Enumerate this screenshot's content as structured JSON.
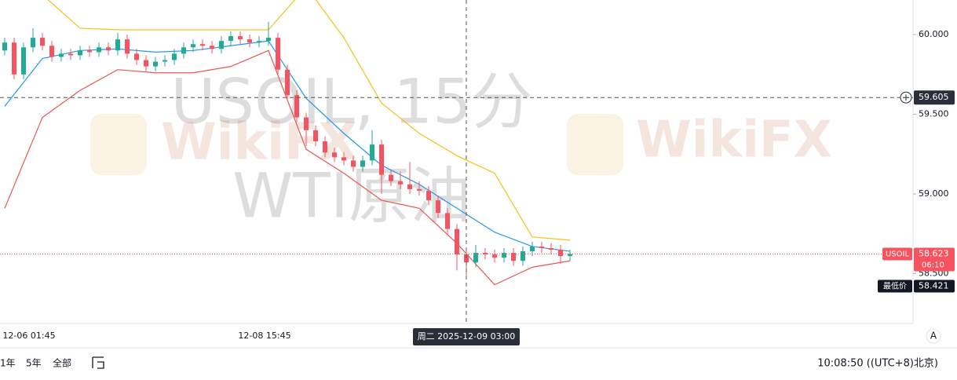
{
  "chart_data": {
    "type": "candlestick",
    "title": "USOIL, 15分",
    "subtitle": "WTI原油",
    "watermark": "WikiFX",
    "categories": [
      null,
      null,
      null,
      "12-06 01:45",
      null,
      null,
      null,
      null,
      null,
      null,
      null,
      null,
      null,
      null,
      null,
      null,
      null,
      null,
      null,
      null,
      null,
      null,
      null,
      null,
      null,
      null,
      null,
      null,
      "12-08 15:45",
      null,
      null,
      null,
      null,
      null,
      null,
      null,
      null,
      null,
      null,
      null,
      null,
      null,
      null,
      null,
      null,
      null,
      null,
      null,
      null,
      null,
      null,
      null,
      null,
      null,
      null,
      null,
      null,
      null,
      null,
      null,
      null
    ],
    "open": [
      59.9,
      59.95,
      59.75,
      59.92,
      59.98,
      59.93,
      59.86,
      59.88,
      59.87,
      59.9,
      59.89,
      59.92,
      59.9,
      59.97,
      59.88,
      59.84,
      59.8,
      59.83,
      59.84,
      59.88,
      59.92,
      59.94,
      59.93,
      59.91,
      59.96,
      59.99,
      59.97,
      59.95,
      59.96,
      59.98,
      59.78,
      59.62,
      59.48,
      59.4,
      59.33,
      59.26,
      59.23,
      59.21,
      59.17,
      59.21,
      59.31,
      59.12,
      59.08,
      59.06,
      59.03,
      59.02,
      58.96,
      58.88,
      58.78,
      58.62,
      58.57,
      58.63,
      58.62,
      58.6,
      58.63,
      58.58,
      58.64,
      58.67,
      58.66,
      58.65,
      58.61
    ],
    "high": [
      59.98,
      59.98,
      59.95,
      60.04,
      60.01,
      59.96,
      59.91,
      59.91,
      59.93,
      59.93,
      59.95,
      59.95,
      60.01,
      60.0,
      59.91,
      59.87,
      59.86,
      59.87,
      59.91,
      59.95,
      59.97,
      59.97,
      59.96,
      59.99,
      60.02,
      60.02,
      60.0,
      59.99,
      60.08,
      60.01,
      59.81,
      59.65,
      59.51,
      59.43,
      59.36,
      59.29,
      59.26,
      59.24,
      59.24,
      59.4,
      59.34,
      59.15,
      59.14,
      59.2,
      59.08,
      59.05,
      58.99,
      58.91,
      58.81,
      58.65,
      58.68,
      58.66,
      58.65,
      58.66,
      58.66,
      58.67,
      58.7,
      58.7,
      58.69,
      58.68,
      58.65
    ],
    "low": [
      59.87,
      59.72,
      59.72,
      59.89,
      59.9,
      59.83,
      59.83,
      59.84,
      59.84,
      59.86,
      59.86,
      59.87,
      59.87,
      59.85,
      59.81,
      59.77,
      59.77,
      59.8,
      59.81,
      59.85,
      59.89,
      59.9,
      59.88,
      59.88,
      59.93,
      59.94,
      59.92,
      59.92,
      59.93,
      59.75,
      59.59,
      59.45,
      59.3,
      59.3,
      59.23,
      59.2,
      59.18,
      59.14,
      59.14,
      59.18,
      59.0,
      59.05,
      59.03,
      59.0,
      58.99,
      58.93,
      58.85,
      58.75,
      58.52,
      58.49,
      58.54,
      58.59,
      58.57,
      58.57,
      58.55,
      58.55,
      58.61,
      58.63,
      58.62,
      58.56,
      58.58
    ],
    "close": [
      59.95,
      59.75,
      59.92,
      59.98,
      59.93,
      59.86,
      59.88,
      59.87,
      59.9,
      59.89,
      59.92,
      59.9,
      59.97,
      59.88,
      59.84,
      59.8,
      59.83,
      59.84,
      59.88,
      59.92,
      59.94,
      59.93,
      59.91,
      59.96,
      59.99,
      59.97,
      59.95,
      59.96,
      59.98,
      59.78,
      59.62,
      59.48,
      59.4,
      59.33,
      59.26,
      59.23,
      59.21,
      59.17,
      59.21,
      59.31,
      59.12,
      59.08,
      59.06,
      59.03,
      59.02,
      58.96,
      58.88,
      58.78,
      58.62,
      58.57,
      58.63,
      58.62,
      58.6,
      58.63,
      58.58,
      58.64,
      58.67,
      58.66,
      58.65,
      58.61,
      58.623
    ],
    "up_color": "#22ab94",
    "down_color": "#f7525f",
    "bands": [
      {
        "color": "#f5c118",
        "x": [
          0,
          4,
          8,
          12,
          16,
          20,
          24,
          28,
          32,
          36,
          40,
          44,
          48,
          52,
          56,
          60
        ],
        "values": [
          60.25,
          60.25,
          60.04,
          60.03,
          60.03,
          60.03,
          60.03,
          60.03,
          60.3,
          59.98,
          59.57,
          59.38,
          59.24,
          59.13,
          58.73,
          58.71
        ]
      },
      {
        "color": "#2196f3",
        "x": [
          0,
          4,
          8,
          12,
          16,
          20,
          24,
          28,
          32,
          36,
          40,
          44,
          48,
          52,
          56,
          60
        ],
        "values": [
          59.55,
          59.85,
          59.9,
          59.91,
          59.89,
          59.9,
          59.93,
          59.96,
          59.6,
          59.38,
          59.18,
          59.06,
          58.91,
          58.76,
          58.67,
          58.64
        ]
      },
      {
        "color": "#e8574f",
        "x": [
          0,
          4,
          8,
          12,
          16,
          20,
          24,
          28,
          32,
          36,
          40,
          44,
          48,
          52,
          56,
          60
        ],
        "values": [
          58.91,
          59.48,
          59.65,
          59.78,
          59.76,
          59.76,
          59.8,
          59.9,
          59.28,
          59.13,
          58.96,
          58.91,
          58.69,
          58.43,
          58.54,
          58.58
        ]
      }
    ],
    "ylim": [
      58.187,
      60.217
    ],
    "yticks": [
      {
        "value": 60,
        "label": "60.000"
      },
      {
        "value": 59.5,
        "label": "59.500"
      },
      {
        "value": 59,
        "label": "59.000"
      },
      {
        "value": 58.5,
        "label": "58.500"
      }
    ],
    "crosshair": {
      "x": 49,
      "y": 59.605,
      "label": "周二 2025-12-09 03:00"
    },
    "last_price": {
      "label": "USOIL",
      "value": 58.623,
      "countdown": "06:10"
    },
    "lowest": {
      "label": "最低价",
      "value": 58.421
    },
    "toolbar": {
      "ranges": [
        "1年",
        "5年",
        "全部"
      ],
      "clock": "10:08:50 ((UTC+8)北京)",
      "auto": "A"
    }
  }
}
